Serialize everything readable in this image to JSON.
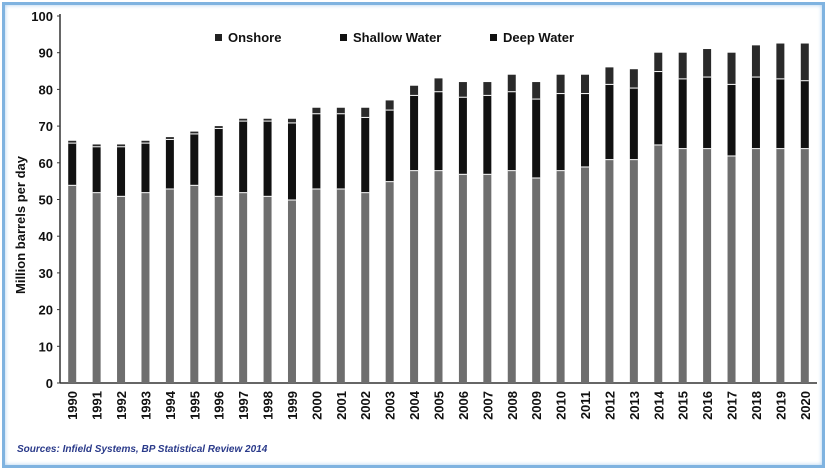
{
  "chart_data": {
    "type": "bar",
    "stacked": true,
    "title": "",
    "xlabel": "",
    "ylabel": "Million barrels per day",
    "ylim": [
      0,
      100
    ],
    "yticks": [
      0,
      10,
      20,
      30,
      40,
      50,
      60,
      70,
      80,
      90,
      100
    ],
    "grid": false,
    "legend_position": "top-center",
    "categories": [
      "1990",
      "1991",
      "1992",
      "1993",
      "1994",
      "1995",
      "1996",
      "1997",
      "1998",
      "1999",
      "2000",
      "2001",
      "2002",
      "2003",
      "2004",
      "2005",
      "2006",
      "2007",
      "2008",
      "2009",
      "2010",
      "2011",
      "2012",
      "2013",
      "2014",
      "2015",
      "2016",
      "2017",
      "2018",
      "2019",
      "2020"
    ],
    "series": [
      {
        "name": "Onshore",
        "color": "#6e6e6e",
        "values": [
          54,
          52,
          51,
          52,
          53,
          54,
          51,
          52,
          51,
          50,
          53,
          53,
          52,
          55,
          58,
          58,
          57,
          57,
          58,
          56,
          58,
          59,
          61,
          61,
          65,
          64,
          64,
          62,
          64,
          64,
          64
        ]
      },
      {
        "name": "Shallow Water",
        "color": "#111111",
        "values": [
          11.5,
          12.5,
          13.5,
          13.5,
          13.5,
          14,
          18.5,
          19.5,
          20.5,
          21,
          20.5,
          20.5,
          20.5,
          19.5,
          20.5,
          21.5,
          21,
          21.5,
          21.5,
          21.5,
          21,
          20,
          20.5,
          19.5,
          20,
          19,
          19.5,
          19.5,
          19.5,
          19,
          18.5
        ]
      },
      {
        "name": "Deep Water",
        "color": "#2a2a2a",
        "values": [
          0.5,
          0.5,
          0.5,
          0.5,
          0.5,
          0.5,
          0.5,
          0.5,
          0.5,
          1,
          1.5,
          1.5,
          2.5,
          2.5,
          2.5,
          3.5,
          4,
          3.5,
          4.5,
          4.5,
          5,
          5,
          4.5,
          5,
          5,
          7,
          7.5,
          8.5,
          8.5,
          9.5,
          10
        ]
      }
    ],
    "source": "Sources: Infield Systems, BP Statistical Review 2014"
  }
}
